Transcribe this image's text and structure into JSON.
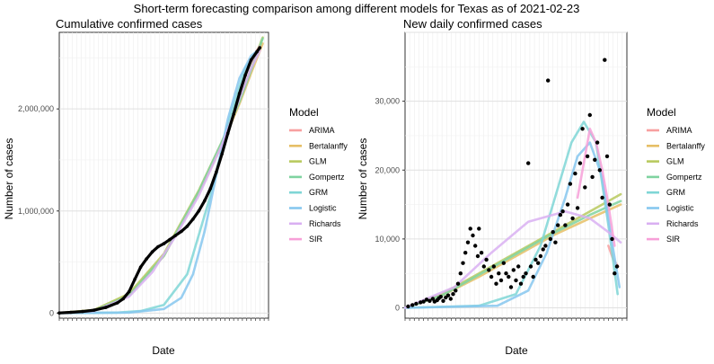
{
  "figure_title": "Short-term forecasting comparison among different models for Texas as of 2021-02-23",
  "legend": {
    "title": "Model",
    "items": [
      {
        "name": "ARIMA",
        "color": "#F8A0A0"
      },
      {
        "name": "Bertalanffy",
        "color": "#E6BF66"
      },
      {
        "name": "GLM",
        "color": "#B8C95E"
      },
      {
        "name": "Gompertz",
        "color": "#7FD3A0"
      },
      {
        "name": "GRM",
        "color": "#7FD6D6"
      },
      {
        "name": "Logistic",
        "color": "#86C7EE"
      },
      {
        "name": "Richards",
        "color": "#D9B0F2"
      },
      {
        "name": "SIR",
        "color": "#F7A0D8"
      }
    ]
  },
  "chart_data": [
    {
      "type": "line",
      "title": "Cumulative confirmed cases",
      "xlabel": "Date",
      "ylabel": "Number of cases",
      "yticks": [
        0,
        1000000,
        2000000
      ],
      "ytick_labels": [
        "0",
        "1,000,000",
        "2,000,000"
      ],
      "ylim": [
        -50000,
        2750000
      ],
      "xlim": [
        0,
        360
      ],
      "grid": true,
      "legend_position": "right",
      "observed": {
        "x": [
          0,
          20,
          40,
          60,
          80,
          100,
          110,
          120,
          130,
          140,
          150,
          160,
          170,
          180,
          190,
          200,
          210,
          220,
          230,
          240,
          250,
          260,
          270,
          280,
          290,
          300,
          310,
          320,
          330,
          340,
          345
        ],
        "y": [
          1000,
          7000,
          15000,
          28000,
          55000,
          100000,
          140000,
          210000,
          330000,
          450000,
          530000,
          600000,
          650000,
          680000,
          720000,
          760000,
          800000,
          850000,
          920000,
          1000000,
          1100000,
          1220000,
          1380000,
          1560000,
          1760000,
          1950000,
          2150000,
          2330000,
          2480000,
          2560000,
          2600000
        ]
      },
      "series": [
        {
          "name": "ARIMA",
          "x": [
            330,
            345
          ],
          "y": [
            2480000,
            2620000
          ]
        },
        {
          "name": "Bertalanffy",
          "x": [
            0,
            60,
            120,
            180,
            240,
            280,
            310,
            330,
            350
          ],
          "y": [
            0,
            30000,
            180000,
            560000,
            1180000,
            1650000,
            2050000,
            2350000,
            2640000
          ]
        },
        {
          "name": "GLM",
          "x": [
            0,
            60,
            120,
            180,
            240,
            280,
            310,
            330,
            350
          ],
          "y": [
            0,
            30000,
            190000,
            580000,
            1200000,
            1680000,
            2080000,
            2400000,
            2700000
          ]
        },
        {
          "name": "Gompertz",
          "x": [
            0,
            60,
            120,
            180,
            240,
            280,
            310,
            330,
            350
          ],
          "y": [
            0,
            25000,
            170000,
            560000,
            1190000,
            1680000,
            2070000,
            2380000,
            2690000
          ]
        },
        {
          "name": "GRM",
          "x": [
            0,
            100,
            140,
            180,
            220,
            260,
            290,
            320,
            345
          ],
          "y": [
            0,
            5000,
            20000,
            80000,
            380000,
            1150000,
            1850000,
            2400000,
            2600000
          ]
        },
        {
          "name": "Logistic",
          "x": [
            0,
            120,
            180,
            210,
            230,
            250,
            270,
            290,
            310,
            330,
            345
          ],
          "y": [
            0,
            5000,
            40000,
            150000,
            380000,
            800000,
            1350000,
            1900000,
            2300000,
            2520000,
            2590000
          ]
        },
        {
          "name": "Richards",
          "x": [
            0,
            60,
            120,
            160,
            200,
            240,
            280,
            310,
            330,
            345
          ],
          "y": [
            0,
            20000,
            160000,
            400000,
            750000,
            1150000,
            1650000,
            2100000,
            2400000,
            2570000
          ]
        },
        {
          "name": "SIR",
          "x": [
            330,
            345
          ],
          "y": [
            2460000,
            2610000
          ]
        }
      ]
    },
    {
      "type": "scatter",
      "title": "New daily confirmed cases",
      "xlabel": "Date",
      "ylabel": "Number of cases",
      "yticks": [
        0,
        10000,
        20000,
        30000
      ],
      "ytick_labels": [
        "0",
        "10,000",
        "20,000",
        "30,000"
      ],
      "ylim": [
        -1500,
        40000
      ],
      "xlim": [
        0,
        360
      ],
      "grid": true,
      "legend_position": "right",
      "observed": {
        "x": [
          5,
          12,
          18,
          25,
          30,
          35,
          40,
          45,
          48,
          52,
          55,
          58,
          62,
          66,
          70,
          74,
          78,
          82,
          86,
          90,
          94,
          98,
          102,
          106,
          110,
          114,
          118,
          120,
          124,
          128,
          132,
          136,
          140,
          144,
          148,
          152,
          156,
          160,
          164,
          168,
          172,
          176,
          180,
          184,
          188,
          192,
          196,
          200,
          204,
          208,
          212,
          216,
          220,
          224,
          228,
          232,
          236,
          240,
          244,
          248,
          252,
          256,
          260,
          264,
          268,
          272,
          276,
          280,
          284,
          288,
          292,
          296,
          300,
          304,
          308,
          312,
          316,
          320,
          324,
          328,
          332,
          336,
          340,
          344
        ],
        "y": [
          200,
          400,
          600,
          800,
          900,
          1200,
          1000,
          1300,
          900,
          1100,
          1400,
          1600,
          1000,
          1500,
          1800,
          1300,
          2000,
          2500,
          3500,
          5000,
          6500,
          8000,
          9500,
          11500,
          10500,
          9000,
          7500,
          11500,
          8000,
          6000,
          7000,
          5500,
          4500,
          6000,
          3500,
          5000,
          4000,
          6500,
          5000,
          4500,
          3000,
          5500,
          4000,
          6000,
          3500,
          4500,
          5000,
          21000,
          6000,
          4500,
          7000,
          6500,
          7500,
          8500,
          9000,
          33000,
          10000,
          11000,
          9500,
          12000,
          13500,
          14000,
          12000,
          15000,
          18000,
          13000,
          19500,
          14500,
          21000,
          26000,
          17500,
          22000,
          28000,
          19000,
          21500,
          24000,
          20000,
          16000,
          36000,
          22000,
          15000,
          10000,
          5000,
          6000
        ]
      },
      "series": [
        {
          "name": "ARIMA",
          "x": [
            330,
            338,
            346
          ],
          "y": [
            9000,
            7000,
            6000
          ]
        },
        {
          "name": "Bertalanffy",
          "x": [
            0,
            60,
            120,
            180,
            240,
            300,
            350
          ],
          "y": [
            0,
            1800,
            4500,
            7500,
            10500,
            13000,
            15000
          ]
        },
        {
          "name": "GLM",
          "x": [
            0,
            60,
            120,
            180,
            240,
            300,
            350
          ],
          "y": [
            0,
            2000,
            5000,
            8000,
            11000,
            14000,
            16500
          ]
        },
        {
          "name": "Gompertz",
          "x": [
            0,
            60,
            120,
            180,
            240,
            300,
            350
          ],
          "y": [
            0,
            1800,
            4800,
            7800,
            10800,
            13500,
            15500
          ]
        },
        {
          "name": "GRM",
          "x": [
            0,
            120,
            180,
            220,
            250,
            270,
            290,
            310,
            330,
            345
          ],
          "y": [
            0,
            300,
            2000,
            9000,
            18000,
            24000,
            27000,
            24000,
            12000,
            2000
          ]
        },
        {
          "name": "Logistic",
          "x": [
            0,
            150,
            200,
            230,
            260,
            280,
            300,
            320,
            335,
            348
          ],
          "y": [
            0,
            300,
            2500,
            8000,
            16000,
            22000,
            24000,
            19000,
            10000,
            3000
          ]
        },
        {
          "name": "Richards",
          "x": [
            0,
            80,
            140,
            200,
            260,
            300,
            330,
            350
          ],
          "y": [
            0,
            3000,
            8000,
            12500,
            14000,
            13000,
            11000,
            9500
          ]
        },
        {
          "name": "SIR",
          "x": [
            280,
            290,
            300,
            310,
            320,
            330,
            340
          ],
          "y": [
            16000,
            21000,
            26000,
            24000,
            20000,
            15000,
            9000
          ]
        }
      ]
    }
  ]
}
